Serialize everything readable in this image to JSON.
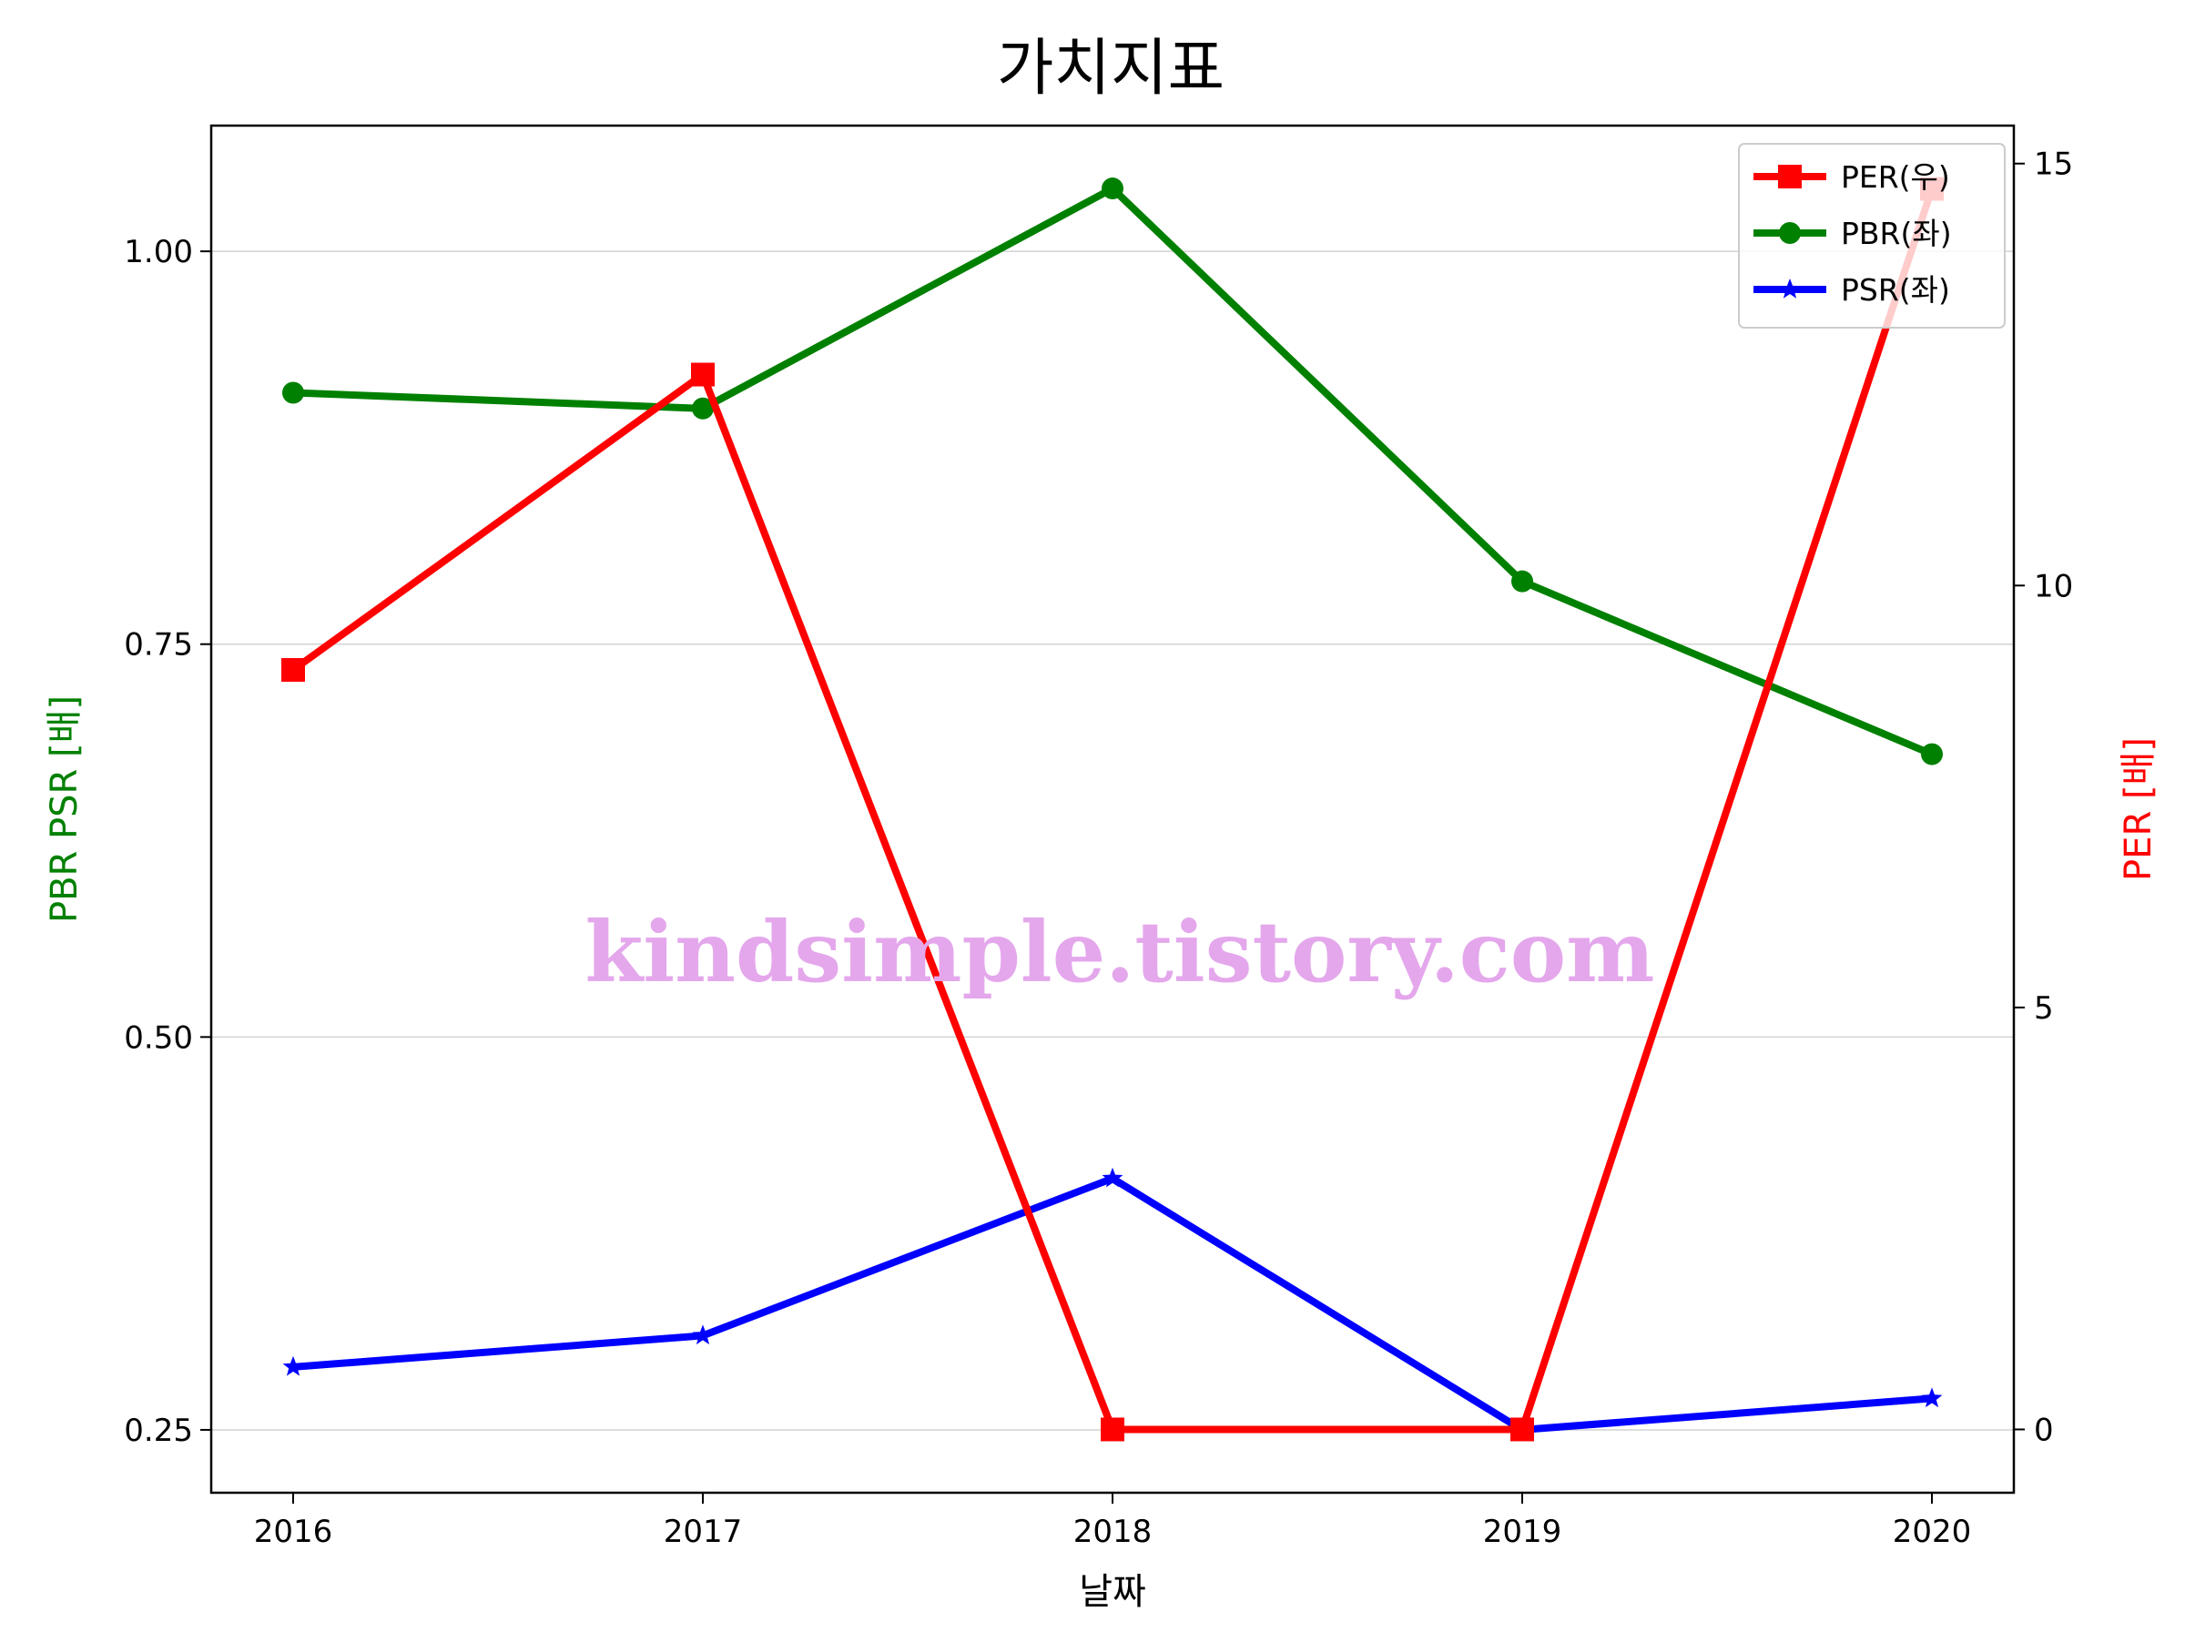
{
  "chart_data": {
    "type": "line",
    "title": "가치지표",
    "xlabel": "날짜",
    "ylabel_left": "PBR PSR [배]",
    "ylabel_right": "PER [배]",
    "categories": [
      "2016",
      "2017",
      "2018",
      "2019",
      "2020"
    ],
    "left_axis": {
      "ylim": [
        0.21,
        1.08
      ],
      "ticks": [
        0.25,
        0.5,
        0.75,
        1.0
      ],
      "tick_labels": [
        "0.25",
        "0.50",
        "0.75",
        "1.00"
      ],
      "grid": true
    },
    "right_axis": {
      "ylim": [
        -0.75,
        15.45
      ],
      "ticks": [
        0,
        5,
        10,
        15
      ],
      "tick_labels": [
        "0",
        "5",
        "10",
        "15"
      ]
    },
    "series": [
      {
        "name": "PER(우)",
        "axis": "right",
        "color": "#ff0000",
        "marker": "square",
        "values": [
          9.0,
          12.5,
          0.0,
          0.0,
          14.7
        ]
      },
      {
        "name": "PBR(좌)",
        "axis": "left",
        "color": "#008000",
        "marker": "circle",
        "values": [
          0.91,
          0.9,
          1.04,
          0.79,
          0.68
        ]
      },
      {
        "name": "PSR(좌)",
        "axis": "left",
        "color": "#0000ff",
        "marker": "star",
        "values": [
          0.29,
          0.31,
          0.41,
          0.25,
          0.27
        ]
      }
    ],
    "legend_position": "top-right",
    "watermark": "kindsimple.tistory.com"
  }
}
